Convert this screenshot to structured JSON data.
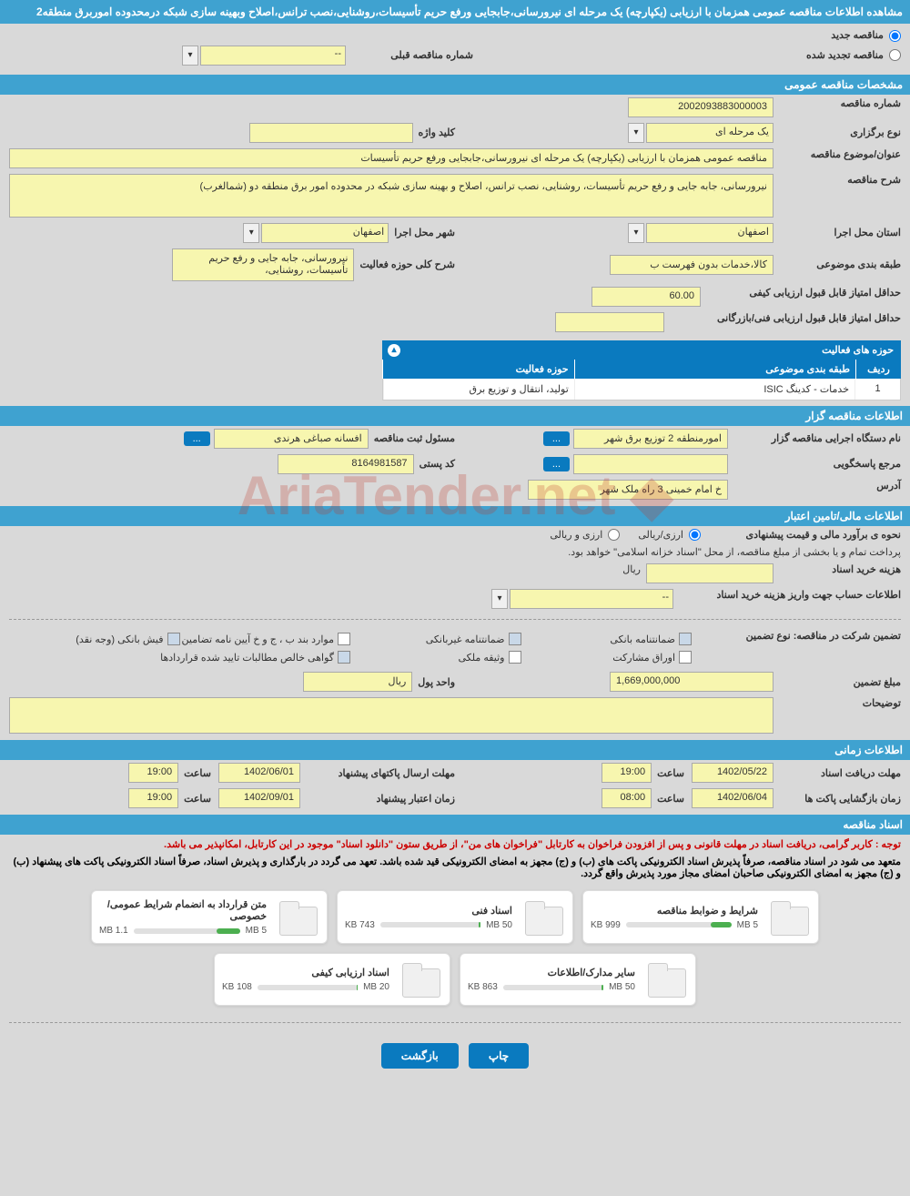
{
  "header": {
    "title": "مشاهده اطلاعات مناقصه عمومی همزمان با ارزیابی (یکپارچه) یک مرحله ای نیرورسانی،جابجایی ورفع حریم تأسیسات،روشنایی،نصب ترانس،اصلاح وبهینه سازی شبکه درمحدوده اموربرق منطقه2"
  },
  "radios": {
    "new": "مناقصه جدید",
    "renewed": "مناقصه تجدید شده",
    "prev_label": "شماره مناقصه قبلی",
    "prev_value": "--"
  },
  "sections": {
    "general": "مشخصات مناقصه عمومی",
    "org": "اطلاعات مناقصه گزار",
    "finance": "اطلاعات مالی/تامین اعتبار",
    "time": "اطلاعات زمانی",
    "docs": "اسناد مناقصه"
  },
  "general": {
    "tender_no_lbl": "شماره مناقصه",
    "tender_no": "2002093883000003",
    "type_lbl": "نوع برگزاری",
    "type": "یک مرحله ای",
    "keyword_lbl": "کلید واژه",
    "keyword": "",
    "subject_lbl": "عنوان/موضوع مناقصه",
    "subject": "مناقصه عمومی همزمان با ارزیابی (یکپارچه) یک مرحله ای نیرورسانی،جابجایی ورفع حریم تأسیسات",
    "desc_lbl": "شرح مناقصه",
    "desc": "نیرورسانی، جابه جایی و رفع حریم تأسیسات، روشنایی، نصب ترانس، اصلاح و بهینه سازی شبکه در محدوده امور برق منطقه دو (شمالغرب)",
    "province_lbl": "استان محل اجرا",
    "province": "اصفهان",
    "city_lbl": "شهر محل اجرا",
    "city": "اصفهان",
    "class_lbl": "طبقه بندی موضوعی",
    "class_val": "کالا،خدمات بدون فهرست ب",
    "scope_lbl": "شرح کلی حوزه فعالیت",
    "scope_val": "نیرورسانی، جابه جایی و رفع حریم تأسیسات، روشنایی،",
    "min_quality_lbl": "حداقل امتیاز قابل قبول ارزیابی کیفی",
    "min_quality": "60.00",
    "min_tech_lbl": "حداقل امتیاز قابل قبول ارزیابی فنی/بازرگانی",
    "min_tech": ""
  },
  "activity_table": {
    "title": "حوزه های فعالیت",
    "col_row": "ردیف",
    "col_class": "طبقه بندی موضوعی",
    "col_scope": "حوزه فعالیت",
    "rows": [
      {
        "n": "1",
        "a": "خدمات - کدینگ ISIC",
        "b": "تولید، انتقال و توزیع برق"
      }
    ]
  },
  "org": {
    "exec_lbl": "نام دستگاه اجرایی مناقصه گزار",
    "exec_val": "امورمنطقه 2 توزیع برق شهر",
    "reg_mgr_lbl": "مسئول ثبت مناقصه",
    "reg_mgr_val": "افسانه صباغی هرندی",
    "contact_lbl": "مرجع پاسخگویی",
    "contact_val": "",
    "postal_lbl": "کد پستی",
    "postal_val": "8164981587",
    "address_lbl": "آدرس",
    "address_val": "خ امام خمینی 3 راه ملک شهر",
    "btn": "..."
  },
  "finance": {
    "estimate_lbl": "نحوه ی برآورد مالی و قیمت پیشنهادی",
    "opt1": "ارزی/ریالی",
    "opt2": "ارزی و ریالی",
    "note": "پرداخت تمام و یا بخشی از مبلغ مناقصه، از محل \"اسناد خزانه اسلامی\" خواهد بود.",
    "cost_lbl": "هزینه خرید اسناد",
    "cost_unit": "ریال",
    "account_lbl": "اطلاعات حساب جهت واریز هزینه خرید اسناد",
    "account_val": "--",
    "guarantee_type_lbl": "تضمین شرکت در مناقصه:   نوع تضمین",
    "chk_bank": "ضمانتنامه بانکی",
    "chk_nonbank": "ضمانتنامه غیربانکی",
    "chk_items": "موارد بند ب ، ج و خ آیین نامه تضامین",
    "chk_cash": "فیش بانکی (وجه نقد)",
    "chk_bonds": "اوراق مشارکت",
    "chk_deed": "وثیقه ملکی",
    "chk_receivable": "گواهی خالص مطالبات تایید شده قراردادها",
    "amount_lbl": "مبلغ تضمین",
    "amount_val": "1,669,000,000",
    "currency_lbl": "واحد پول",
    "currency_val": "ریال",
    "notes_lbl": "توضیحات"
  },
  "time": {
    "recv_lbl": "مهلت دریافت اسناد",
    "recv_date": "1402/05/22",
    "recv_time_lbl": "ساعت",
    "recv_time": "19:00",
    "send_lbl": "مهلت ارسال پاکتهای پیشنهاد",
    "send_date": "1402/06/01",
    "send_time": "19:00",
    "open_lbl": "زمان بازگشایی پاکت ها",
    "open_date": "1402/06/04",
    "open_time": "08:00",
    "valid_lbl": "زمان اعتبار پیشنهاد",
    "valid_date": "1402/09/01",
    "valid_time": "19:00"
  },
  "docs": {
    "notice1": "توجه : کاربر گرامی، دریافت اسناد در مهلت قانونی و پس از افزودن فراخوان به کارتابل \"فراخوان های من\"، از طریق ستون \"دانلود اسناد\" موجود در این کارتابل، امکانپذیر می باشد.",
    "notice2": "متعهد می شود در اسناد مناقصه، صرفاً پذیرش اسناد الکترونیکی پاکت های (ب) و (ج) مجهز به امضای الکترونیکی قید شده باشد. تعهد می گردد در بارگذاری و پذیرش اسناد، صرفاً اسناد الکترونیکی پاکت های پیشنهاد (ب) و (ج) مجهز به امضای الکترونیکی صاحبان امضای مجاز مورد پذیرش واقع گردد.",
    "files": [
      {
        "title": "شرایط و ضوابط مناقصه",
        "size": "999 KB",
        "cap": "5 MB",
        "pct": 20
      },
      {
        "title": "اسناد فنی",
        "size": "743 KB",
        "cap": "50 MB",
        "pct": 2
      },
      {
        "title": "متن قرارداد به انضمام شرایط عمومی/خصوصی",
        "size": "1.1 MB",
        "cap": "5 MB",
        "pct": 22
      },
      {
        "title": "سایر مدارک/اطلاعات",
        "size": "863 KB",
        "cap": "50 MB",
        "pct": 2
      },
      {
        "title": "اسناد ارزیابی کیفی",
        "size": "108 KB",
        "cap": "20 MB",
        "pct": 1
      }
    ]
  },
  "buttons": {
    "print": "چاپ",
    "back": "بازگشت"
  },
  "colors": {
    "headerBg": "#3fa2d0",
    "tableHeaderBg": "#0a7abf",
    "inputBg": "#f7f6af",
    "bodyBg": "#d9d9d9"
  }
}
